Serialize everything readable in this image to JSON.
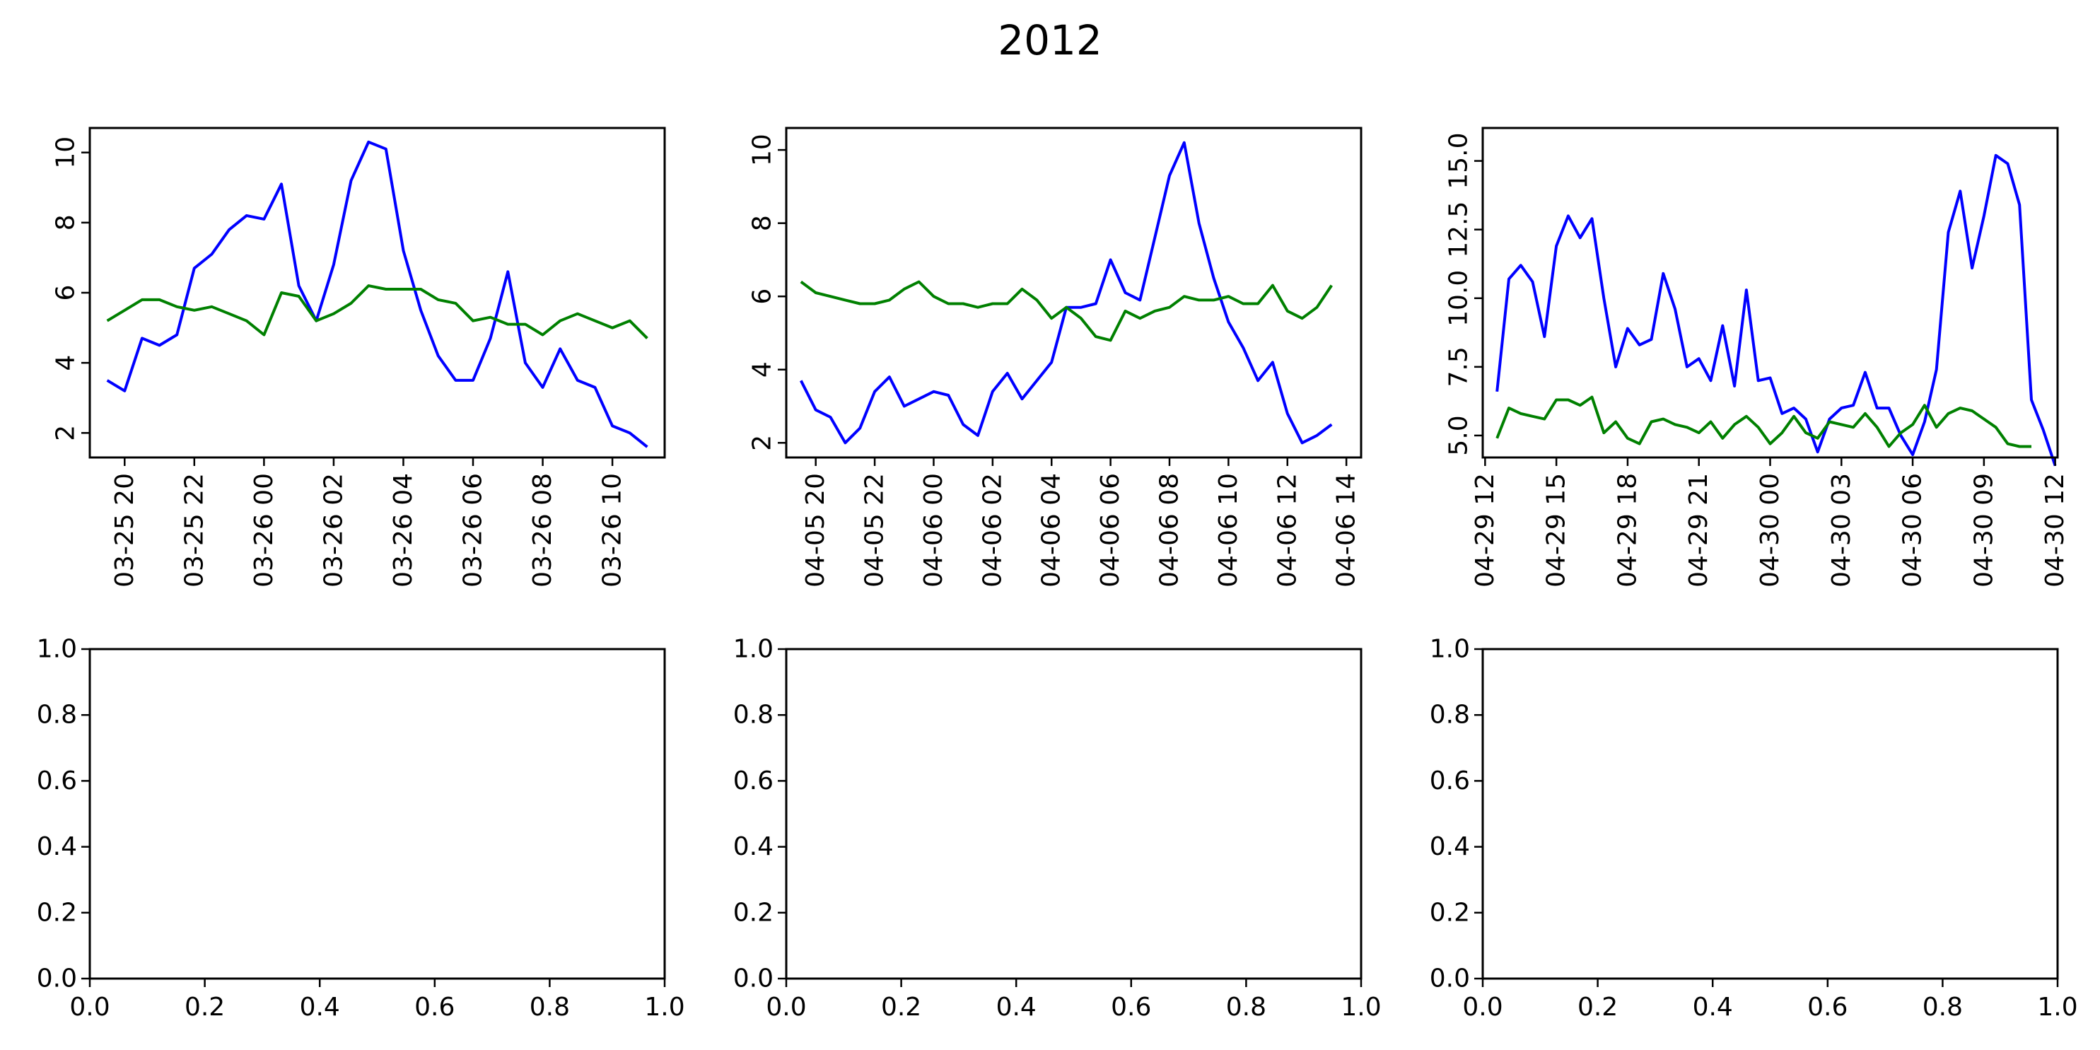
{
  "figure": {
    "title": "2012"
  },
  "colors": {
    "series_1": "#0000ff",
    "series_2": "#008000",
    "axes": "#000000",
    "background": "#ffffff"
  },
  "chart_data": [
    {
      "type": "line",
      "x_type": "datetime",
      "x_start": "2012-03-25T19:30",
      "x_step_minutes": 30,
      "xlim": [
        "2012-03-25T19:00",
        "2012-03-26T11:30"
      ],
      "xtick_values": [
        "2012-03-25T20:00",
        "2012-03-25T22:00",
        "2012-03-26T00:00",
        "2012-03-26T02:00",
        "2012-03-26T04:00",
        "2012-03-26T06:00",
        "2012-03-26T08:00",
        "2012-03-26T10:00"
      ],
      "xtick_labels": [
        "03-25 20",
        "03-25 22",
        "03-26 00",
        "03-26 02",
        "03-26 04",
        "03-26 06",
        "03-26 08",
        "03-26 10"
      ],
      "ylim": [
        1.3,
        10.7
      ],
      "ytick_values": [
        2,
        4,
        6,
        8,
        10
      ],
      "ytick_labels": [
        "2",
        "4",
        "6",
        "8",
        "10"
      ],
      "ytick_rotation": 90,
      "series": [
        {
          "color": "#0000ff",
          "values": [
            3.5,
            3.2,
            4.7,
            4.5,
            4.8,
            6.7,
            7.1,
            7.8,
            8.2,
            8.1,
            9.1,
            6.2,
            5.2,
            6.8,
            9.2,
            10.3,
            10.1,
            7.2,
            5.5,
            4.2,
            3.5,
            3.5,
            4.7,
            6.6,
            4.0,
            3.3,
            4.4,
            3.5,
            3.3,
            2.2,
            2.0,
            1.6
          ]
        },
        {
          "color": "#008000",
          "values": [
            5.2,
            5.5,
            5.8,
            5.8,
            5.6,
            5.5,
            5.6,
            5.4,
            5.2,
            4.8,
            6.0,
            5.9,
            5.2,
            5.4,
            5.7,
            6.2,
            6.1,
            6.1,
            6.1,
            5.8,
            5.7,
            5.2,
            5.3,
            5.1,
            5.1,
            4.8,
            5.2,
            5.4,
            5.2,
            5.0,
            5.2,
            4.7
          ]
        }
      ]
    },
    {
      "type": "line",
      "x_type": "datetime",
      "x_start": "2012-04-05T19:30",
      "x_step_minutes": 30,
      "xlim": [
        "2012-04-05T19:00",
        "2012-04-06T14:30"
      ],
      "xtick_values": [
        "2012-04-05T20:00",
        "2012-04-05T22:00",
        "2012-04-06T00:00",
        "2012-04-06T02:00",
        "2012-04-06T04:00",
        "2012-04-06T06:00",
        "2012-04-06T08:00",
        "2012-04-06T10:00",
        "2012-04-06T12:00",
        "2012-04-06T14:00"
      ],
      "xtick_labels": [
        "04-05 20",
        "04-05 22",
        "04-06 00",
        "04-06 02",
        "04-06 04",
        "04-06 06",
        "04-06 08",
        "04-06 10",
        "04-06 12",
        "04-06 14"
      ],
      "ylim": [
        1.6,
        10.6
      ],
      "ytick_values": [
        2,
        4,
        6,
        8,
        10
      ],
      "ytick_labels": [
        "2",
        "4",
        "6",
        "8",
        "10"
      ],
      "ytick_rotation": 90,
      "series": [
        {
          "color": "#0000ff",
          "values": [
            3.7,
            2.9,
            2.7,
            2.0,
            2.4,
            3.4,
            3.8,
            3.0,
            3.2,
            3.4,
            3.3,
            2.5,
            2.2,
            3.4,
            3.9,
            3.2,
            3.7,
            4.2,
            5.7,
            5.7,
            5.8,
            7.0,
            6.1,
            5.9,
            7.6,
            9.3,
            10.2,
            8.0,
            6.5,
            5.3,
            4.6,
            3.7,
            4.2,
            2.8,
            2.0,
            2.2,
            2.5
          ]
        },
        {
          "color": "#008000",
          "values": [
            6.4,
            6.1,
            6.0,
            5.9,
            5.8,
            5.8,
            5.9,
            6.2,
            6.4,
            6.0,
            5.8,
            5.8,
            5.7,
            5.8,
            5.8,
            6.2,
            5.9,
            5.4,
            5.7,
            5.4,
            4.9,
            4.8,
            5.6,
            5.4,
            5.6,
            5.7,
            6.0,
            5.9,
            5.9,
            6.0,
            5.8,
            5.8,
            6.3,
            5.6,
            5.4,
            5.7,
            6.3
          ]
        }
      ]
    },
    {
      "type": "line",
      "x_type": "datetime",
      "x_start": "2012-04-29T12:30",
      "x_step_minutes": 30,
      "xlim": [
        "2012-04-29T11:54",
        "2012-04-30T12:06"
      ],
      "xtick_values": [
        "2012-04-29T12:00",
        "2012-04-29T15:00",
        "2012-04-29T18:00",
        "2012-04-29T21:00",
        "2012-04-30T00:00",
        "2012-04-30T03:00",
        "2012-04-30T06:00",
        "2012-04-30T09:00",
        "2012-04-30T12:00"
      ],
      "xtick_labels": [
        "04-29 12",
        "04-29 15",
        "04-29 18",
        "04-29 21",
        "04-30 00",
        "04-30 03",
        "04-30 06",
        "04-30 09",
        "04-30 12"
      ],
      "ylim": [
        4.2,
        16.2
      ],
      "ytick_values": [
        5.0,
        7.5,
        10.0,
        12.5,
        15.0
      ],
      "ytick_labels": [
        "5.0",
        "7.5",
        "10.0",
        "12.5",
        "15.0"
      ],
      "ytick_rotation": 90,
      "series": [
        {
          "color": "#0000ff",
          "values": [
            6.6,
            10.7,
            11.2,
            10.6,
            8.6,
            11.9,
            13.0,
            12.2,
            12.9,
            10.0,
            7.5,
            8.9,
            8.3,
            8.5,
            10.9,
            9.6,
            7.5,
            7.8,
            7.0,
            9.0,
            6.8,
            10.3,
            7.0,
            7.1,
            5.8,
            6.0,
            5.6,
            4.4,
            5.6,
            6.0,
            6.1,
            7.3,
            6.0,
            6.0,
            5.0,
            4.3,
            5.5,
            7.4,
            12.4,
            13.9,
            11.1,
            13.0,
            15.2,
            14.9,
            13.4,
            6.3,
            5.2,
            3.9
          ]
        },
        {
          "color": "#008000",
          "values": [
            4.9,
            6.0,
            5.8,
            5.7,
            5.6,
            6.3,
            6.3,
            6.1,
            6.4,
            5.1,
            5.5,
            4.9,
            4.7,
            5.5,
            5.6,
            5.4,
            5.3,
            5.1,
            5.5,
            4.9,
            5.4,
            5.7,
            5.3,
            4.7,
            5.1,
            5.7,
            5.1,
            4.9,
            5.5,
            5.4,
            5.3,
            5.8,
            5.3,
            4.6,
            5.1,
            5.4,
            6.1,
            5.3,
            5.8,
            6.0,
            5.9,
            5.6,
            5.3,
            4.7,
            4.6,
            4.6
          ]
        }
      ]
    },
    {
      "type": "line",
      "empty": true,
      "xlim": [
        0,
        1
      ],
      "ylim": [
        0,
        1
      ],
      "xtick_labels": [
        "0.0",
        "0.2",
        "0.4",
        "0.6",
        "0.8",
        "1.0"
      ],
      "ytick_labels": [
        "0.0",
        "0.2",
        "0.4",
        "0.6",
        "0.8",
        "1.0"
      ]
    },
    {
      "type": "line",
      "empty": true,
      "xlim": [
        0,
        1
      ],
      "ylim": [
        0,
        1
      ],
      "xtick_labels": [
        "0.0",
        "0.2",
        "0.4",
        "0.6",
        "0.8",
        "1.0"
      ],
      "ytick_labels": [
        "0.0",
        "0.2",
        "0.4",
        "0.6",
        "0.8",
        "1.0"
      ]
    },
    {
      "type": "line",
      "empty": true,
      "xlim": [
        0,
        1
      ],
      "ylim": [
        0,
        1
      ],
      "xtick_labels": [
        "0.0",
        "0.2",
        "0.4",
        "0.6",
        "0.8",
        "1.0"
      ],
      "ytick_labels": [
        "0.0",
        "0.2",
        "0.4",
        "0.6",
        "0.8",
        "1.0"
      ]
    }
  ]
}
